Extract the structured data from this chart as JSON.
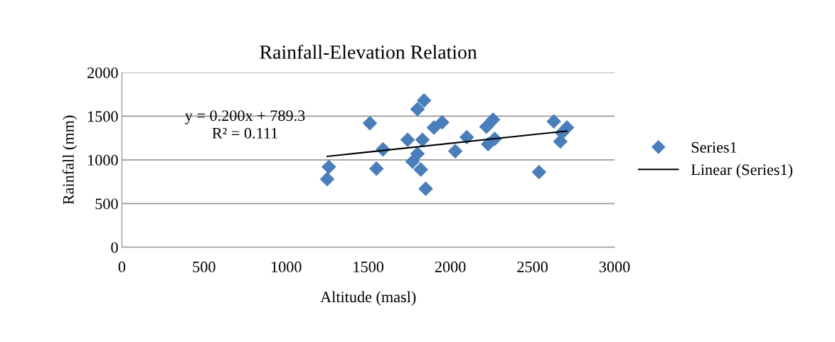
{
  "chart_data": {
    "type": "scatter",
    "title": "Rainfall-Elevation Relation",
    "xlabel": "Altitude (masl)",
    "ylabel": "Rainfall (mm)",
    "xlim": [
      0,
      3000
    ],
    "xticks": [
      0,
      500,
      1000,
      1500,
      2000,
      2500,
      3000
    ],
    "ylim": [
      0,
      2000
    ],
    "yticks": [
      0,
      500,
      1000,
      1500,
      2000
    ],
    "grid": "y",
    "legend": "right",
    "marker": "diamond",
    "annotations": [
      "y = 0.200x + 789.3",
      "R² = 0.111"
    ],
    "series": [
      {
        "name": "Series1",
        "color": "#4a7ebb",
        "x": [
          1250,
          1260,
          1510,
          1550,
          1590,
          1740,
          1800,
          1770,
          1820,
          1850,
          1830,
          1840,
          1800,
          1900,
          1950,
          2030,
          2100,
          2220,
          2260,
          2230,
          2270,
          2630,
          2540,
          2710,
          2670,
          2680
        ],
        "values": [
          780,
          920,
          1420,
          900,
          1120,
          1230,
          1070,
          980,
          890,
          670,
          1230,
          1680,
          1580,
          1370,
          1430,
          1100,
          1260,
          1380,
          1460,
          1180,
          1240,
          1440,
          860,
          1370,
          1210,
          1310
        ]
      },
      {
        "name": "Linear (Series1)",
        "type": "line",
        "color": "#000000",
        "line_style": "solid",
        "marker": "none",
        "x": [
          1250,
          2710
        ],
        "values": [
          1040,
          1330
        ]
      }
    ]
  }
}
